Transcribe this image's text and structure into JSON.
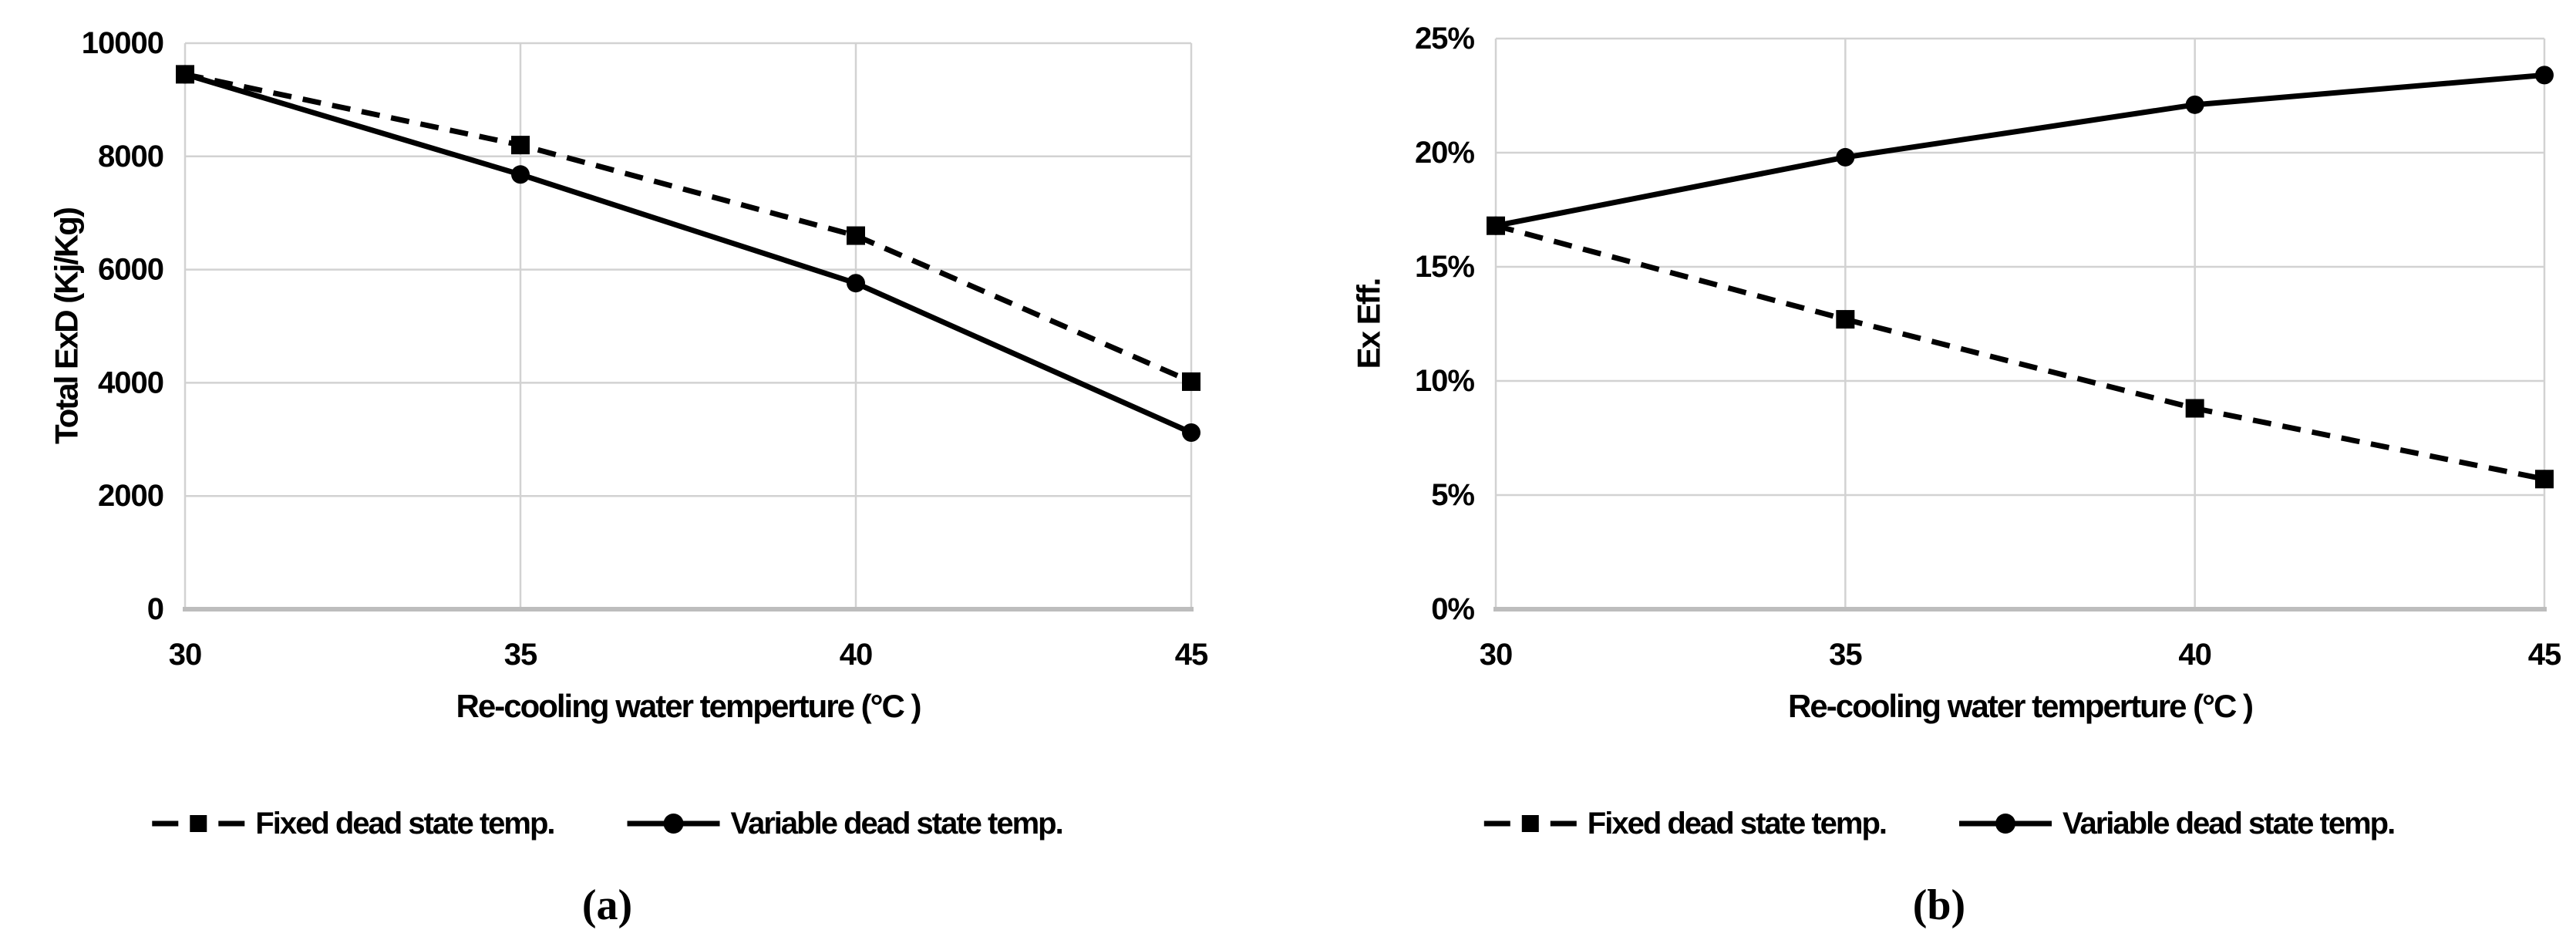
{
  "colors": {
    "series": "#000000",
    "gridline": "#d2d2d2",
    "axis_line": "#bdbdbd",
    "text": "#000000",
    "background": "#ffffff"
  },
  "chart_data": [
    {
      "type": "line",
      "caption": "(a)",
      "xlabel": "Re-cooling water temperture (°C )",
      "ylabel": "Total ExD (Kj/Kg)",
      "x": [
        30,
        35,
        40,
        45
      ],
      "x_tick_labels": [
        "30",
        "35",
        "40",
        "45"
      ],
      "xlim": [
        30,
        45
      ],
      "ylim": [
        0,
        10000
      ],
      "y_ticks": [
        0,
        2000,
        4000,
        6000,
        8000,
        10000
      ],
      "y_tick_labels": [
        "0",
        "2000",
        "4000",
        "6000",
        "8000",
        "10000"
      ],
      "grid": true,
      "legend_position": "bottom",
      "series": [
        {
          "name": "Fixed dead state temp.",
          "line_style": "dashed",
          "marker": "square",
          "color": "#000000",
          "values": [
            9450,
            8200,
            6600,
            4020
          ]
        },
        {
          "name": "Variable dead state temp.",
          "line_style": "solid",
          "marker": "circle",
          "color": "#000000",
          "values": [
            9450,
            7680,
            5760,
            3120
          ]
        }
      ]
    },
    {
      "type": "line",
      "caption": "(b)",
      "xlabel": "Re-cooling water temperture (°C )",
      "ylabel": "Ex Eff.",
      "x": [
        30,
        35,
        40,
        45
      ],
      "x_tick_labels": [
        "30",
        "35",
        "40",
        "45"
      ],
      "xlim": [
        30,
        45
      ],
      "ylim": [
        0,
        25
      ],
      "y_ticks": [
        0,
        5,
        10,
        15,
        20,
        25
      ],
      "y_tick_labels": [
        "0%",
        "5%",
        "10%",
        "15%",
        "20%",
        "25%"
      ],
      "grid": true,
      "legend_position": "bottom",
      "series": [
        {
          "name": "Fixed dead state temp.",
          "line_style": "dashed",
          "marker": "square",
          "color": "#000000",
          "values": [
            16.8,
            12.7,
            8.8,
            5.7
          ]
        },
        {
          "name": "Variable dead state temp.",
          "line_style": "solid",
          "marker": "circle",
          "color": "#000000",
          "values": [
            16.8,
            19.8,
            22.1,
            23.4
          ]
        }
      ]
    }
  ]
}
